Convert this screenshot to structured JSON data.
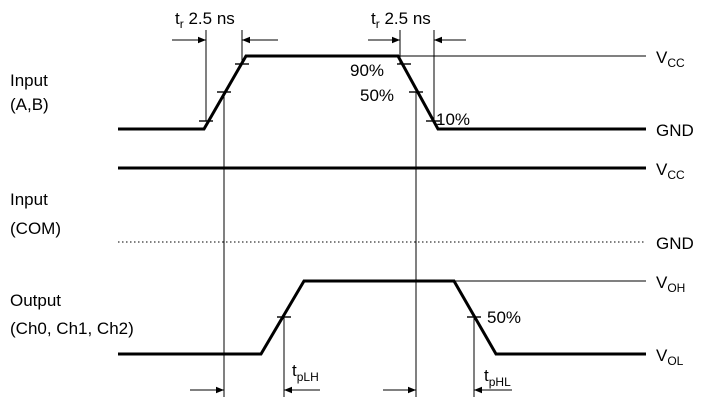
{
  "signals": {
    "input_ab": {
      "line1": "Input",
      "line2": "(A,B)"
    },
    "input_com": {
      "line1": "Input",
      "line2": "(COM)"
    },
    "output": {
      "line1": "Output",
      "line2": "(Ch0, Ch1, Ch2)"
    }
  },
  "levels": {
    "vcc_main": "V",
    "vcc_sub": "CC",
    "gnd": "GND",
    "voh_main": "V",
    "voh_sub": "OH",
    "vol_main": "V",
    "vol_sub": "OL"
  },
  "thresholds": {
    "p90": "90%",
    "p50": "50%",
    "p10": "10%",
    "out50": "50%"
  },
  "timing": {
    "rise_main": "t",
    "rise_sub": "r",
    "rise_value": " 2.5 ns",
    "fall_main": "t",
    "fall_sub": "r",
    "fall_value": " 2.5 ns",
    "tplh_main": "t",
    "tplh_sub": "pLH",
    "tphl_main": "t",
    "tphl_sub": "pHL"
  }
}
